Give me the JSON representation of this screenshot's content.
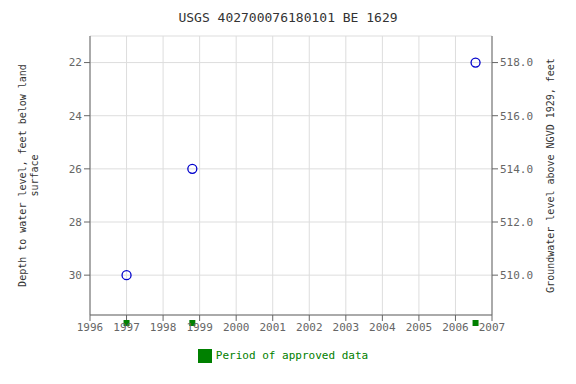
{
  "chart_data": {
    "type": "scatter",
    "title": "USGS 402700076180101 BE  1629",
    "y_label": "Depth to water level, feet below land\nsurface",
    "y2_label": "Groundwater level above NGVD 1929, feet",
    "x": [
      1997.0,
      1998.8,
      2006.55
    ],
    "series": [
      {
        "values": [
          30.0,
          26.0,
          22.0
        ],
        "color": "#0000cc",
        "marker": "open_circle"
      }
    ],
    "approved_periods": {
      "name": "Period of approved data",
      "color": "#008000",
      "marker": "square",
      "x": [
        1997.0,
        1998.8,
        2006.55
      ]
    },
    "xlim": [
      1996,
      2007
    ],
    "xticks": [
      1996,
      1997,
      1998,
      1999,
      2000,
      2001,
      2002,
      2003,
      2004,
      2005,
      2006,
      2007
    ],
    "ylim": [
      31.5,
      21.0
    ],
    "yticks": [
      22.0,
      24.0,
      26.0,
      28.0,
      30.0
    ],
    "y2lim": [
      508.5,
      519.0
    ],
    "y2ticks": [
      {
        "value": 518.0,
        "label": "518.0"
      },
      {
        "value": 516.0,
        "label": "516.0"
      },
      {
        "value": 514.0,
        "label": "514.0"
      },
      {
        "value": 512.0,
        "label": "512.0"
      },
      {
        "value": 510.0,
        "label": "510.0"
      }
    ],
    "grid": true,
    "legend": "bottom"
  }
}
